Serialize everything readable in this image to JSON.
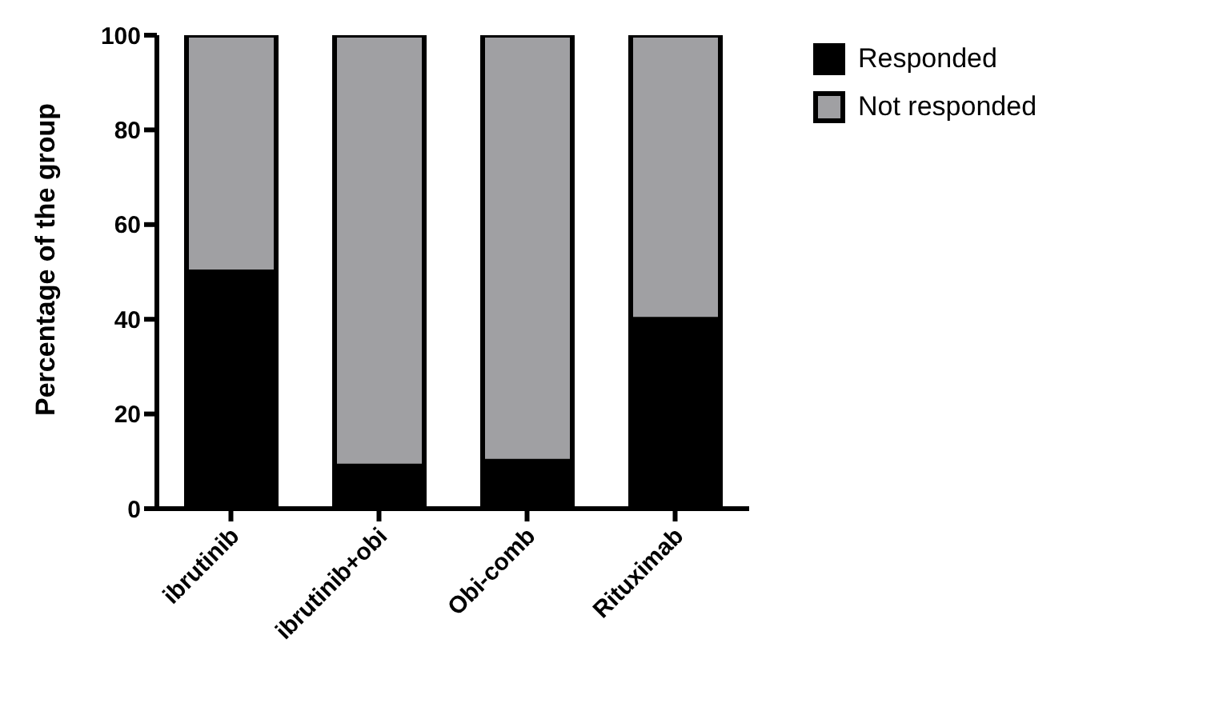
{
  "chart_data": {
    "type": "bar",
    "stacked": true,
    "ylabel": "Percentage of the group",
    "categories": [
      "ibrutinib",
      "ibrutinib+obi",
      "Obi-comb",
      "Rituximab"
    ],
    "series": [
      {
        "name": "Responded",
        "color": "#000000",
        "values": [
          50,
          9,
          10,
          40
        ]
      },
      {
        "name": "Not responded",
        "color": "#a0a0a3",
        "values": [
          50,
          91,
          90,
          60
        ]
      }
    ],
    "ylim": [
      0,
      100
    ],
    "yticks": [
      0,
      20,
      40,
      60,
      80,
      100
    ],
    "grid": false,
    "legend": "top right"
  }
}
